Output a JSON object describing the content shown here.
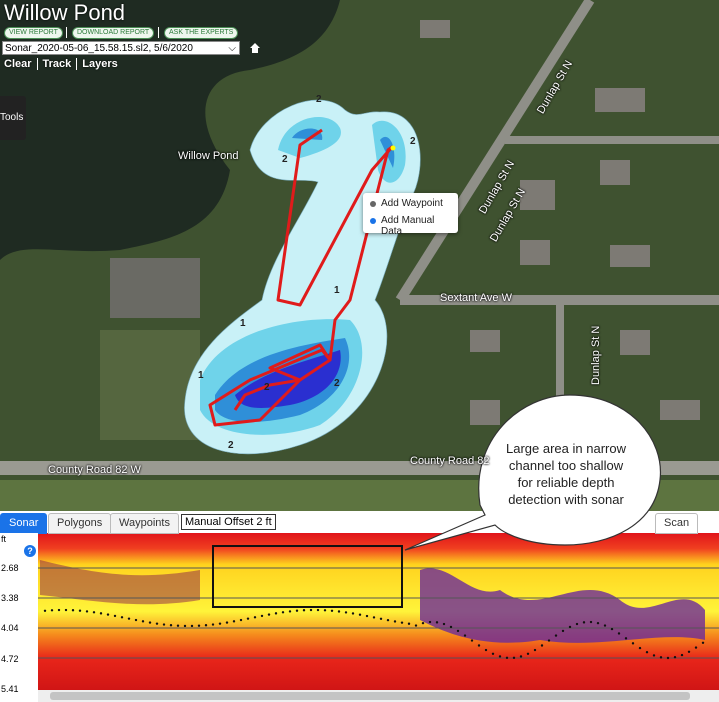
{
  "header": {
    "title": "Willow Pond",
    "buttons": [
      "VIEW REPORT",
      "DOWNLOAD REPORT",
      "ASK THE EXPERTS"
    ],
    "file_select": "Sonar_2020-05-06_15.58.15.sl2, 5/6/2020",
    "menu": [
      "Clear",
      "Track",
      "Layers"
    ]
  },
  "sidebar": {
    "tools": "Tools"
  },
  "map": {
    "pond_label": "Willow Pond",
    "street_labels": [
      "Dunlap St N",
      "Dunlap St N",
      "Dunlap St N",
      "Sextant Ave W",
      "Dunlap St N",
      "County Road 82 W",
      "County Road 82"
    ],
    "contour_labels": [
      "2",
      "2",
      "2",
      "1",
      "1",
      "2",
      "2",
      "1",
      "2"
    ]
  },
  "context_menu": [
    "Add Waypoint",
    "Add Manual Data"
  ],
  "callout": [
    "Large area in narrow",
    "channel too shallow",
    "for reliable depth",
    "detection with sonar"
  ],
  "sonar_panel": {
    "tabs": [
      "Sonar",
      "Polygons",
      "Waypoints"
    ],
    "offset": "Manual Offset 2 ft",
    "scan": "Scan",
    "help": "?",
    "depth_unit": "ft",
    "depth_labels": [
      "2.68",
      "3.38",
      "4.04",
      "4.72",
      "5.41"
    ]
  }
}
